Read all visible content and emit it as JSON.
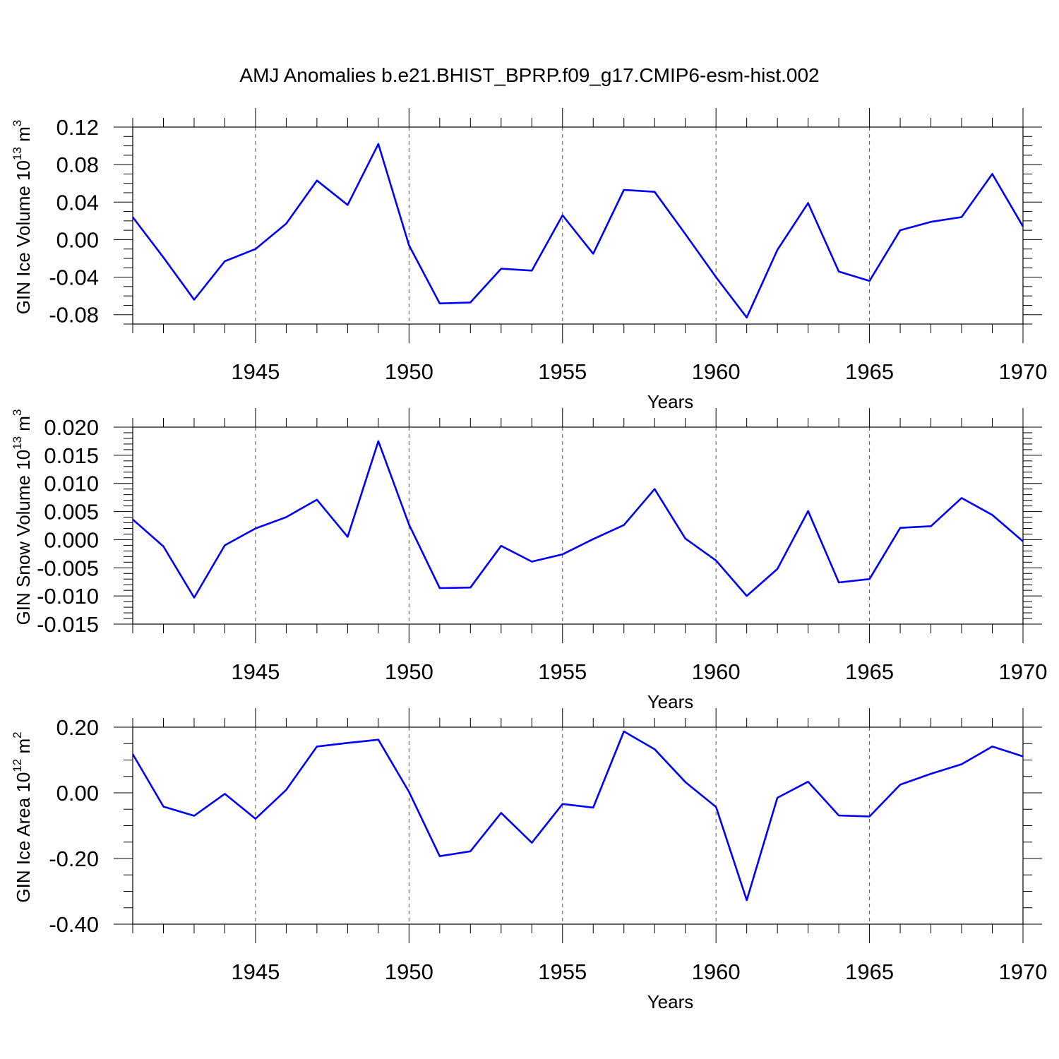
{
  "title": "AMJ Anomalies b.e21.BHIST_BPRP.f09_g17.CMIP6-esm-hist.002",
  "colors": {
    "line": "#0000ff",
    "axes": "#000000",
    "grid": "#555555"
  },
  "chart_data": [
    {
      "type": "line",
      "title": "AMJ Anomalies b.e21.BHIST_BPRP.f09_g17.CMIP6-esm-hist.002",
      "xlabel": "Years",
      "ylabel_main": "GIN Ice Volume 10",
      "ylabel_exp": "13",
      "ylabel_unit": " m",
      "ylabel_unit_exp": "3",
      "xlim": [
        1941,
        1970
      ],
      "ylim": [
        -0.09,
        0.12
      ],
      "yticks": [
        -0.08,
        -0.04,
        0.0,
        0.04,
        0.08,
        0.12
      ],
      "ytick_labels": [
        "-0.08",
        "-0.04",
        "0.00",
        "0.04",
        "0.08",
        "0.12"
      ],
      "ymin_step": 0.01,
      "xticks": [
        1945,
        1950,
        1955,
        1960,
        1965,
        1970
      ],
      "xtick_labels": [
        "1945",
        "1950",
        "1955",
        "1960",
        "1965",
        "1970"
      ],
      "x": [
        1941,
        1942,
        1943,
        1944,
        1945,
        1946,
        1947,
        1948,
        1949,
        1950,
        1951,
        1952,
        1953,
        1954,
        1955,
        1956,
        1957,
        1958,
        1959,
        1960,
        1961,
        1962,
        1963,
        1964,
        1965,
        1966,
        1967,
        1968,
        1969,
        1970
      ],
      "values": [
        0.024,
        -0.019,
        -0.064,
        -0.023,
        -0.01,
        0.017,
        0.063,
        0.037,
        0.102,
        -0.006,
        -0.068,
        -0.067,
        -0.031,
        -0.033,
        0.026,
        -0.015,
        0.053,
        0.051,
        0.006,
        -0.04,
        -0.083,
        -0.011,
        0.039,
        -0.034,
        -0.044,
        0.01,
        0.019,
        0.024,
        0.07,
        0.014
      ]
    },
    {
      "type": "line",
      "xlabel": "Years",
      "ylabel_main": "GIN Snow Volume 10",
      "ylabel_exp": "13",
      "ylabel_unit": " m",
      "ylabel_unit_exp": "3",
      "xlim": [
        1941,
        1970
      ],
      "ylim": [
        -0.015,
        0.02
      ],
      "yticks": [
        -0.015,
        -0.01,
        -0.005,
        0.0,
        0.005,
        0.01,
        0.015,
        0.02
      ],
      "ytick_labels": [
        "-0.015",
        "-0.010",
        "-0.005",
        "0.000",
        "0.005",
        "0.010",
        "0.015",
        "0.020"
      ],
      "ymin_step": 0.001,
      "xticks": [
        1945,
        1950,
        1955,
        1960,
        1965,
        1970
      ],
      "xtick_labels": [
        "1945",
        "1950",
        "1955",
        "1960",
        "1965",
        "1970"
      ],
      "x": [
        1941,
        1942,
        1943,
        1944,
        1945,
        1946,
        1947,
        1948,
        1949,
        1950,
        1951,
        1952,
        1953,
        1954,
        1955,
        1956,
        1957,
        1958,
        1959,
        1960,
        1961,
        1962,
        1963,
        1964,
        1965,
        1966,
        1967,
        1968,
        1969,
        1970
      ],
      "values": [
        0.0036,
        -0.0012,
        -0.0103,
        -0.001,
        0.002,
        0.004,
        0.0071,
        0.0005,
        0.0175,
        0.0027,
        -0.0086,
        -0.0085,
        -0.0011,
        -0.0039,
        -0.0026,
        0.0001,
        0.0026,
        0.009,
        0.0002,
        -0.0037,
        -0.01,
        -0.0052,
        0.0051,
        -0.0076,
        -0.007,
        0.0021,
        0.0024,
        0.0074,
        0.0044,
        -0.0003
      ]
    },
    {
      "type": "line",
      "xlabel": "Years",
      "ylabel_main": "GIN Ice Area 10",
      "ylabel_exp": "12",
      "ylabel_unit": " m",
      "ylabel_unit_exp": "2",
      "xlim": [
        1941,
        1970
      ],
      "ylim": [
        -0.4,
        0.2
      ],
      "yticks": [
        -0.4,
        -0.2,
        0.0,
        0.2
      ],
      "ytick_labels": [
        "-0.40",
        "-0.20",
        "0.00",
        "0.20"
      ],
      "ymin_step": 0.05,
      "xticks": [
        1945,
        1950,
        1955,
        1960,
        1965,
        1970
      ],
      "xtick_labels": [
        "1945",
        "1950",
        "1955",
        "1960",
        "1965",
        "1970"
      ],
      "x": [
        1941,
        1942,
        1943,
        1944,
        1945,
        1946,
        1947,
        1948,
        1949,
        1950,
        1951,
        1952,
        1953,
        1954,
        1955,
        1956,
        1957,
        1958,
        1959,
        1960,
        1961,
        1962,
        1963,
        1964,
        1965,
        1966,
        1967,
        1968,
        1969,
        1970
      ],
      "values": [
        0.118,
        -0.042,
        -0.07,
        -0.003,
        -0.079,
        0.009,
        0.141,
        0.152,
        0.162,
        0.003,
        -0.193,
        -0.178,
        -0.061,
        -0.152,
        -0.034,
        -0.045,
        0.187,
        0.133,
        0.033,
        -0.043,
        -0.327,
        -0.015,
        0.034,
        -0.069,
        -0.072,
        0.025,
        0.058,
        0.087,
        0.141,
        0.111
      ]
    }
  ]
}
